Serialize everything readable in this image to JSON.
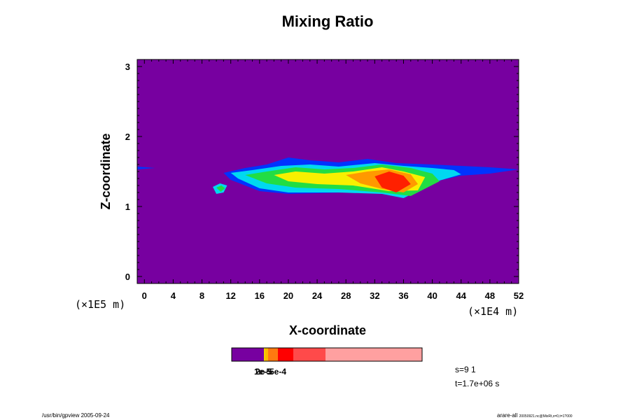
{
  "chart_data": {
    "type": "heatmap",
    "title": "Mixing Ratio",
    "xlabel": "X-coordinate",
    "ylabel": "Z-coordinate",
    "x_scale_label": "(×1E4 m)",
    "y_scale_label": "(×1E5 m)",
    "xlim": [
      -1,
      52
    ],
    "ylim": [
      -0.1,
      3.1
    ],
    "x_ticks": [
      "0",
      "4",
      "8",
      "12",
      "16",
      "20",
      "24",
      "28",
      "32",
      "36",
      "40",
      "44",
      "48",
      "52"
    ],
    "y_ticks": [
      "0",
      "1",
      "2",
      "3"
    ],
    "background_color": "#7700A0",
    "plume_description_levels": [
      {
        "level": "blue",
        "color": "#0033FF"
      },
      {
        "level": "cyan",
        "color": "#00D8F0"
      },
      {
        "level": "green",
        "color": "#22DD44"
      },
      {
        "level": "yellow",
        "color": "#F8F000"
      },
      {
        "level": "orange",
        "color": "#FF9900"
      },
      {
        "level": "red",
        "color": "#FF2000"
      }
    ],
    "colorbar": {
      "segments": [
        {
          "color": "#7700A0"
        },
        {
          "color": "#F2D300"
        },
        {
          "color": "#FFB800"
        },
        {
          "color": "#FF7A10"
        },
        {
          "color": "#FF0000"
        },
        {
          "color": "#FF4A4A"
        },
        {
          "color": "#FFA0A0"
        }
      ],
      "labels": [
        "1e-5",
        "2e-5",
        "5e-4"
      ]
    },
    "step_label": "s=9 1",
    "time_label": "t=1.7e+06 s"
  },
  "footer": {
    "left": "/usr/bin/gpview 2005-09-24",
    "right_main": "arare-all",
    "right_small": "20050921.nc@MixRt,x=0,t=1?000"
  }
}
